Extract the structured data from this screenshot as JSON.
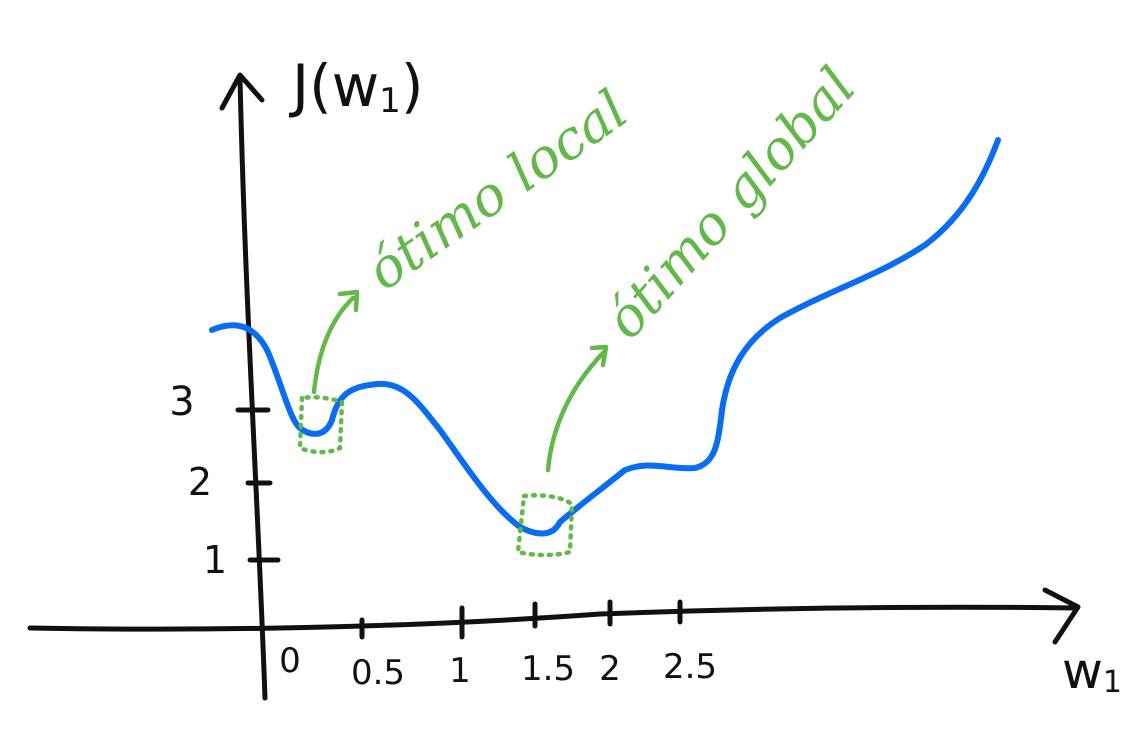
{
  "axes": {
    "y_label": "J(w",
    "y_label_sub": "1",
    "y_label_close": ")",
    "x_label": "w",
    "x_label_sub": "1",
    "x_ticks": [
      "0",
      "0.5",
      "1",
      "1.5",
      "2",
      "2.5"
    ],
    "y_ticks": [
      "1",
      "2",
      "3"
    ]
  },
  "annotations": {
    "local": "ótimo local",
    "global": "ótimo global"
  },
  "colors": {
    "curve": "#0a6cf0",
    "annotation": "#62b84a",
    "ink": "#111111"
  }
}
